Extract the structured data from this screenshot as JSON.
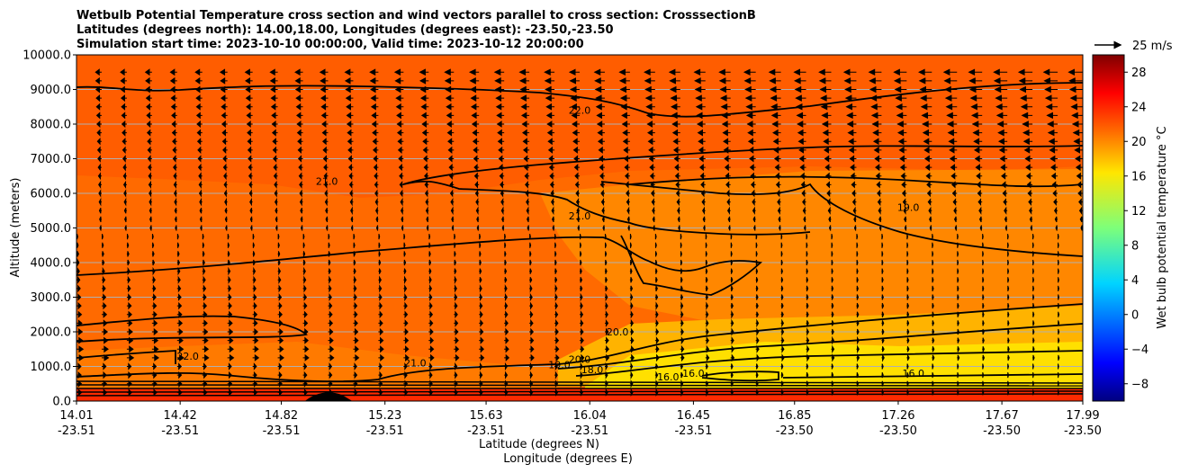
{
  "chart_data": {
    "type": "heatmap",
    "title_lines": [
      "Wetbulb Potential Temperature cross section and wind vectors parallel to cross section: CrosssectionB",
      "Latitudes (degrees north): 14.00,18.00, Longitudes (degrees east): -23.50,-23.50",
      "Simulation start time: 2023-10-10 00:00:00, Valid time: 2023-10-12 20:00:00"
    ],
    "xlabel": "Latitude (degrees N)",
    "xlabel2": "Longitude (degrees E)",
    "ylabel": "Altitude (meters)",
    "ylim": [
      0,
      10000
    ],
    "grid": true,
    "x_ticks": [
      {
        "lat": "14.01",
        "lon": "-23.51"
      },
      {
        "lat": "14.42",
        "lon": "-23.51"
      },
      {
        "lat": "14.82",
        "lon": "-23.51"
      },
      {
        "lat": "15.23",
        "lon": "-23.51"
      },
      {
        "lat": "15.63",
        "lon": "-23.51"
      },
      {
        "lat": "16.04",
        "lon": "-23.51"
      },
      {
        "lat": "16.45",
        "lon": "-23.51"
      },
      {
        "lat": "16.85",
        "lon": "-23.50"
      },
      {
        "lat": "17.26",
        "lon": "-23.50"
      },
      {
        "lat": "17.67",
        "lon": "-23.50"
      },
      {
        "lat": "17.99",
        "lon": "-23.50"
      }
    ],
    "y_ticks": [
      "0.0",
      "1000.0",
      "2000.0",
      "3000.0",
      "4000.0",
      "5000.0",
      "6000.0",
      "7000.0",
      "8000.0",
      "9000.0",
      "10000.0"
    ],
    "colorbar": {
      "label": "Wet bulb potential temperature °C",
      "range": [
        -10,
        30
      ],
      "ticks": [
        "−8",
        "−4",
        "0",
        "4",
        "8",
        "12",
        "16",
        "20",
        "24",
        "28"
      ],
      "colormap": "jet"
    },
    "quiver_key": "25 m/s",
    "contour_levels": [
      "16.0",
      "18.0",
      "19.0",
      "20.0",
      "21.0",
      "22.0"
    ],
    "contour_labels": [
      {
        "text": "22.0",
        "lat": 16.0,
        "alt": 8300
      },
      {
        "text": "21.0",
        "lat": 15.0,
        "alt": 6250
      },
      {
        "text": "21.0",
        "lat": 16.0,
        "alt": 5250
      },
      {
        "text": "19.0",
        "lat": 17.3,
        "alt": 5500
      },
      {
        "text": "20.0",
        "lat": 16.15,
        "alt": 1900
      },
      {
        "text": "20.0",
        "lat": 16.0,
        "alt": 1100
      },
      {
        "text": "19.0",
        "lat": 15.92,
        "alt": 950
      },
      {
        "text": "18.0",
        "lat": 16.05,
        "alt": 800
      },
      {
        "text": "16.0",
        "lat": 16.35,
        "alt": 600
      },
      {
        "text": "16.0",
        "lat": 16.45,
        "alt": 700
      },
      {
        "text": "16.0",
        "lat": 17.32,
        "alt": 700
      },
      {
        "text": "22.0",
        "lat": 14.45,
        "alt": 1200
      },
      {
        "text": "21.0",
        "lat": 15.35,
        "alt": 1000
      }
    ],
    "wind_direction_note": "westward above ~5000 m, eastward below",
    "fill_bands_celsius": [
      {
        "alt_max": 300,
        "value": 26
      },
      {
        "alt_max": 1000,
        "value": 18
      },
      {
        "alt_max": 2000,
        "value": 20
      },
      {
        "alt_max": 5000,
        "value": 21
      },
      {
        "alt_max": 10000,
        "value": 22
      }
    ]
  }
}
